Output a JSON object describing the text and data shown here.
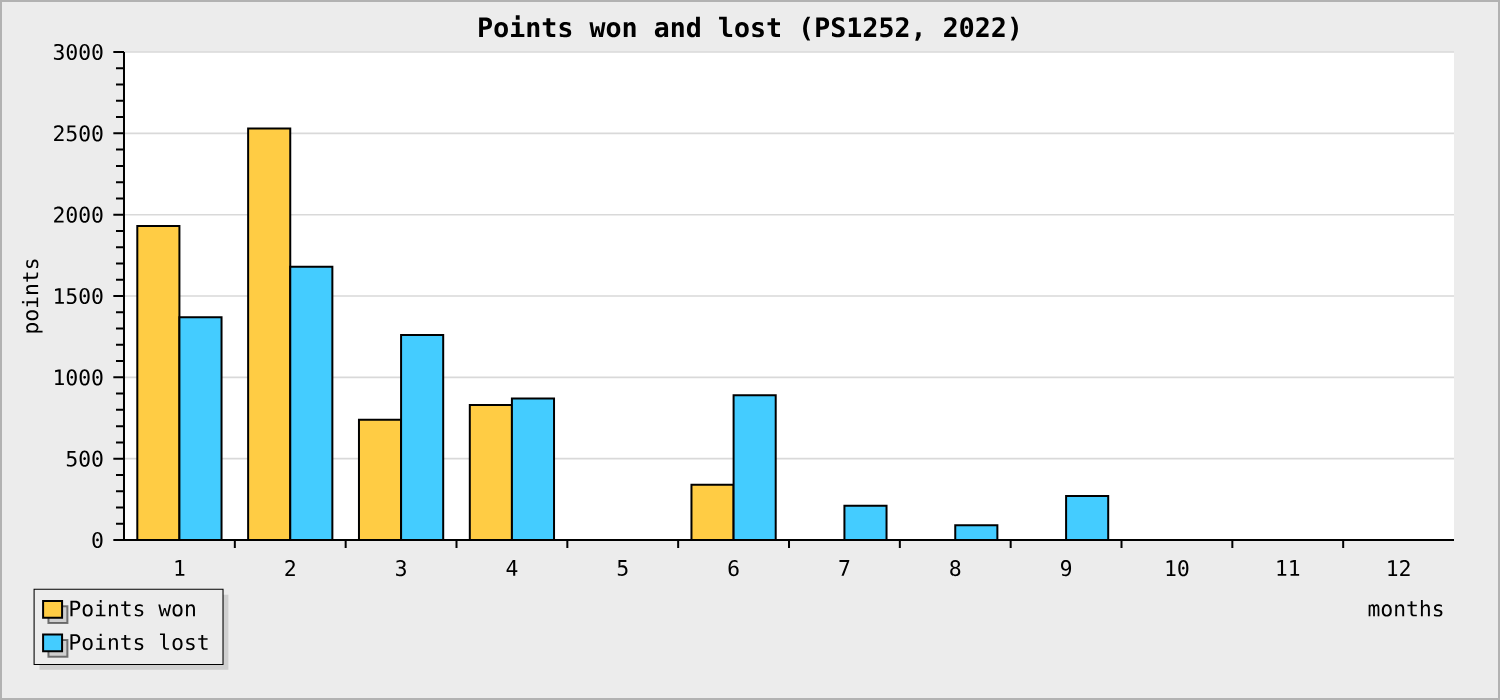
{
  "chart_data": {
    "type": "bar",
    "title": "Points won and lost (PS1252, 2022)",
    "xlabel": "months",
    "ylabel": "points",
    "categories": [
      "1",
      "2",
      "3",
      "4",
      "5",
      "6",
      "7",
      "8",
      "9",
      "10",
      "11",
      "12"
    ],
    "series": [
      {
        "name": "Points won",
        "color": "#ffcc44",
        "values": [
          1930,
          2530,
          740,
          830,
          0,
          340,
          0,
          0,
          0,
          0,
          0,
          0
        ]
      },
      {
        "name": "Points lost",
        "color": "#44ccff",
        "values": [
          1370,
          1680,
          1260,
          870,
          0,
          890,
          210,
          90,
          270,
          0,
          0,
          0
        ]
      }
    ],
    "ylim": [
      0,
      3000
    ],
    "yticks": [
      0,
      500,
      1000,
      1500,
      2000,
      2500,
      3000
    ],
    "grid": "y",
    "legend": "bottom left"
  }
}
